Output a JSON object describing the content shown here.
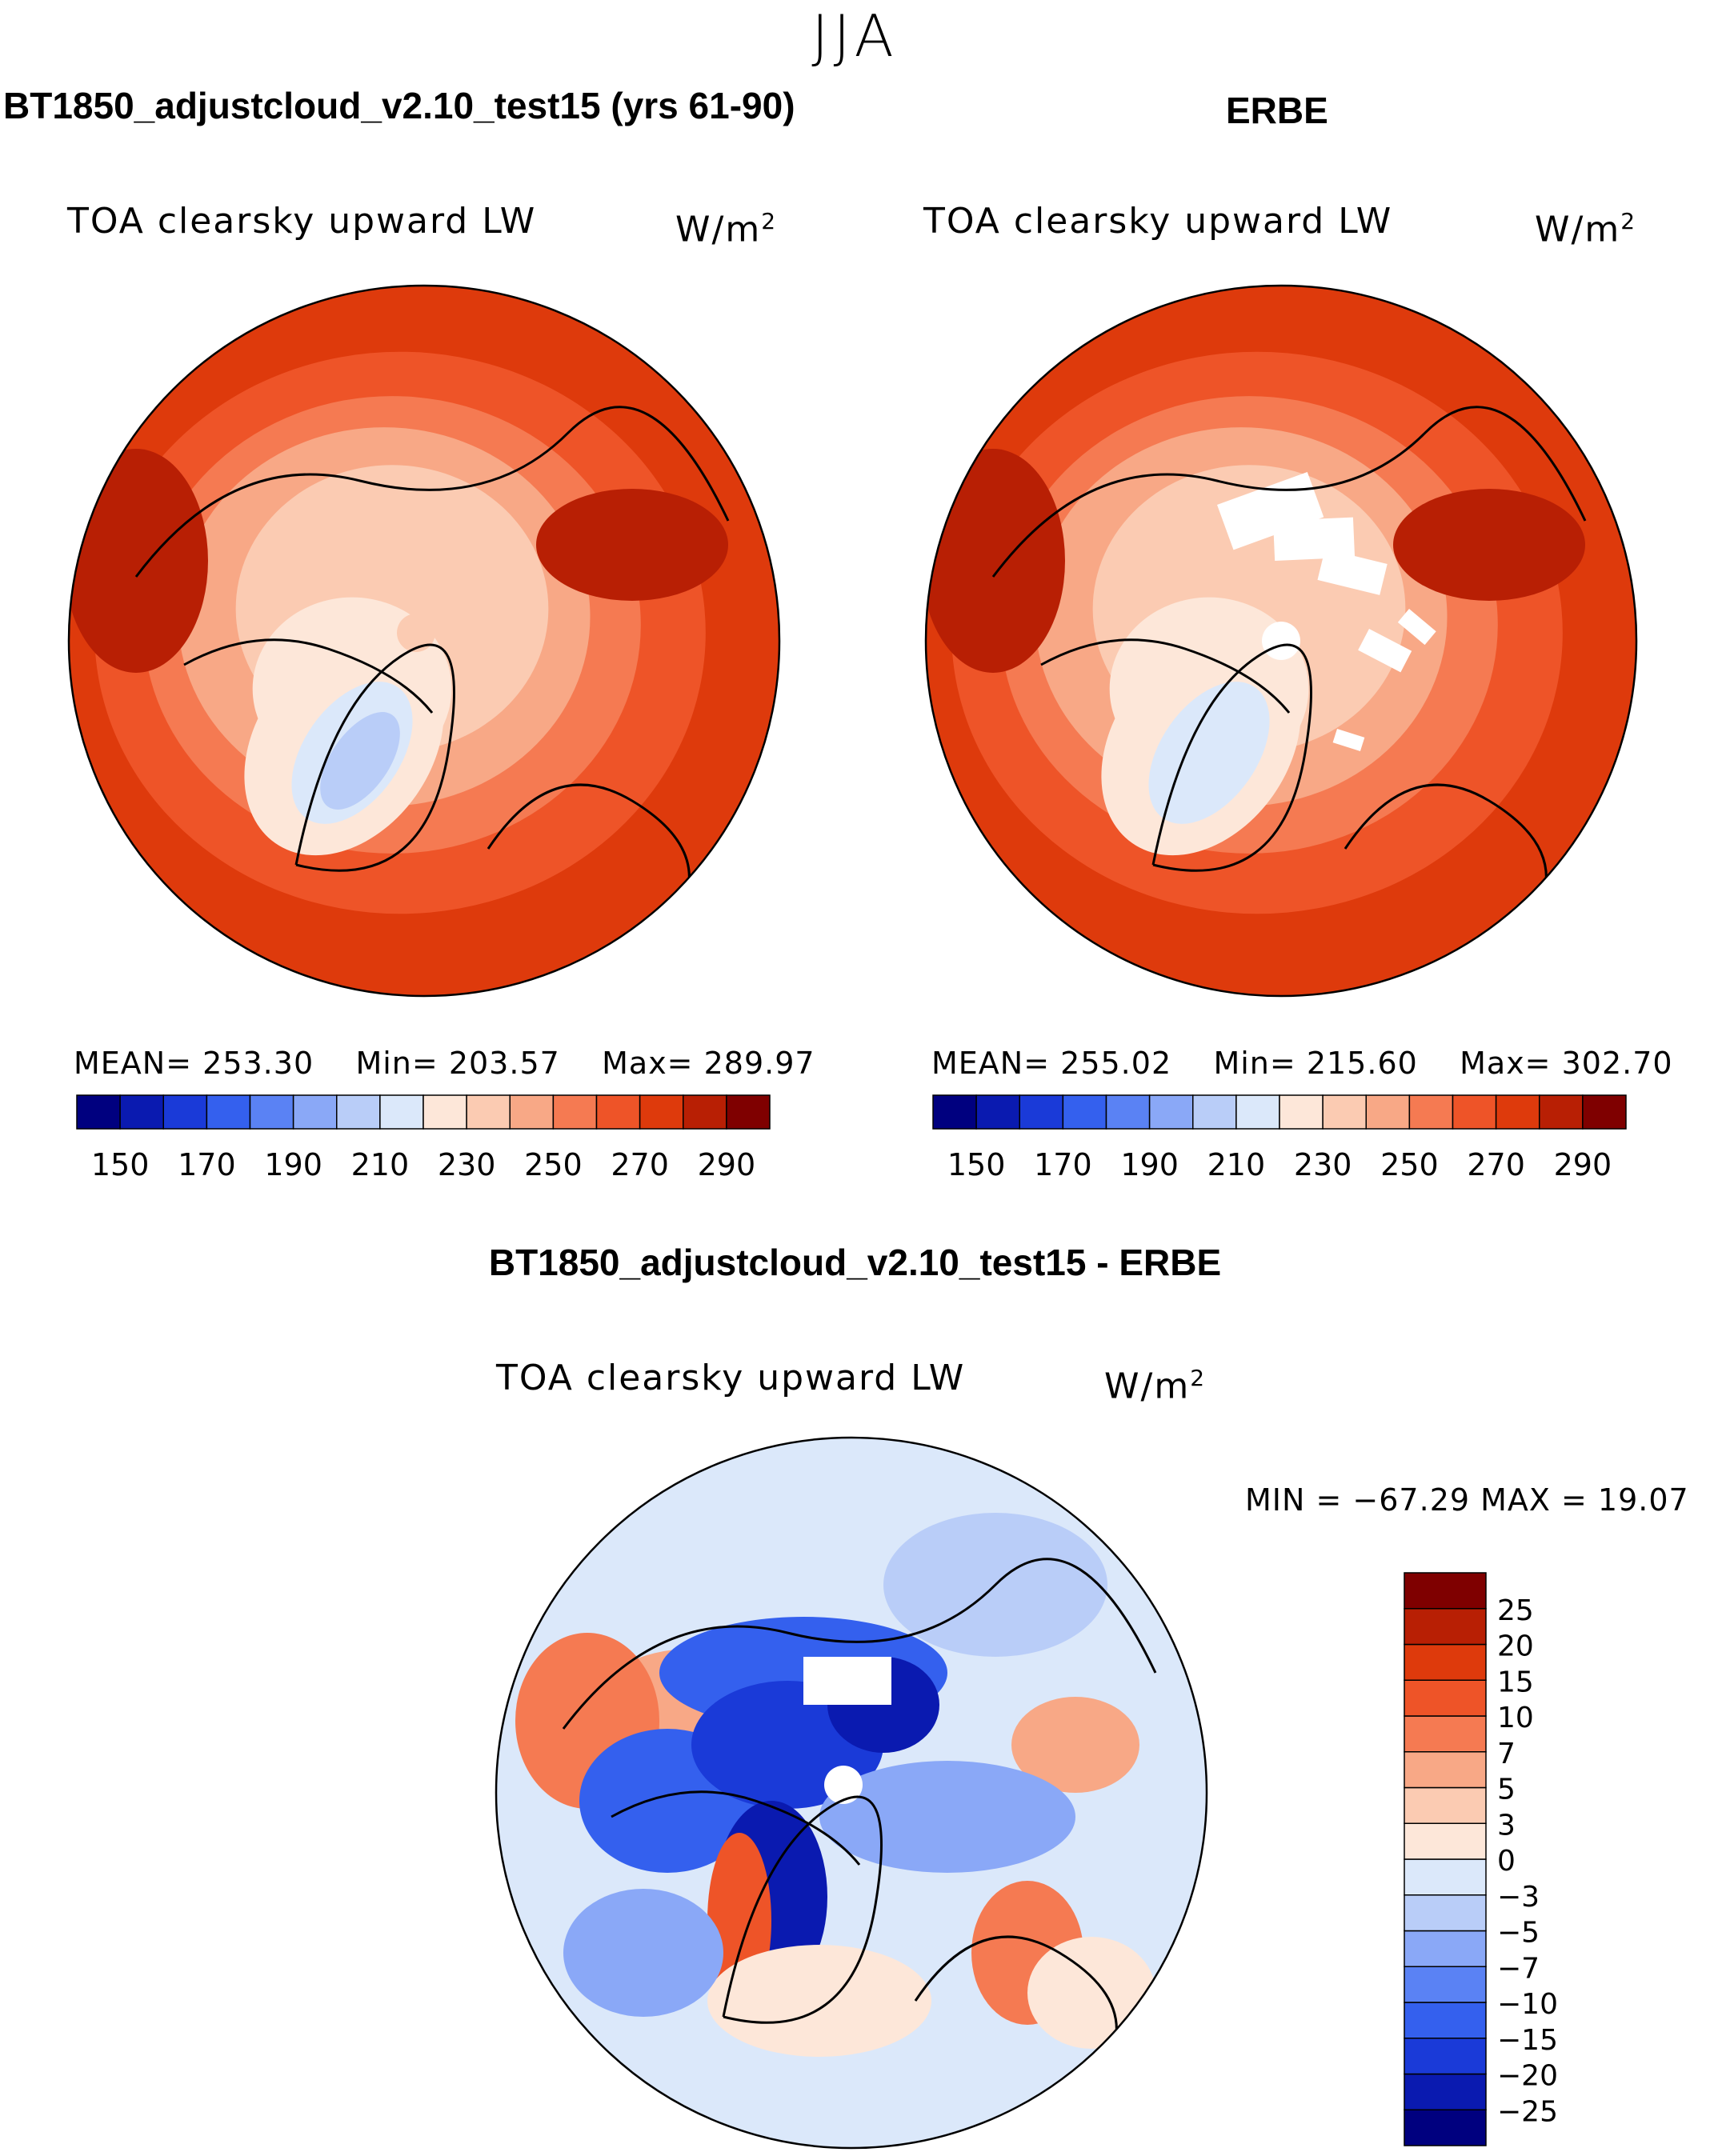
{
  "season": "JJA",
  "panels": [
    {
      "title": "BT1850_adjustcloud_v2.10_test15 (yrs 61-90)",
      "subtitle": "TOA clearsky upward LW",
      "units": "W/m",
      "units_exp": "2",
      "stats": {
        "mean_label": "MEAN=",
        "mean": "253.30",
        "min_label": "Min=",
        "min": "203.57",
        "max_label": "Max=",
        "max": "289.97"
      }
    },
    {
      "title": "ERBE",
      "subtitle": "TOA clearsky upward LW",
      "units": "W/m",
      "units_exp": "2",
      "stats": {
        "mean_label": "MEAN=",
        "mean": "255.02",
        "min_label": "Min=",
        "min": "215.60",
        "max_label": "Max=",
        "max": "302.70"
      }
    },
    {
      "title": "BT1850_adjustcloud_v2.10_test15 - ERBE",
      "subtitle": "TOA clearsky upward LW",
      "units": "W/m",
      "units_exp": "2",
      "stats_text": "MIN = −67.29 MAX =  19.07"
    }
  ],
  "chart_data": [
    {
      "type": "heatmap",
      "projection": "north polar stereographic",
      "title": "BT1850_adjustcloud_v2.10_test15 (yrs 61-90)",
      "field": "TOA clearsky upward LW",
      "colorbar_levels": [
        150,
        160,
        170,
        180,
        190,
        200,
        210,
        220,
        230,
        240,
        250,
        260,
        270,
        280,
        290
      ],
      "colorbar_ticks": [
        "150",
        "170",
        "190",
        "210",
        "230",
        "250",
        "270",
        "290"
      ],
      "colors": [
        "#00007f",
        "#0a1ab0",
        "#1a3ad8",
        "#3460ee",
        "#5a82f4",
        "#8aa8f7",
        "#b9cdf8",
        "#dbe8fa",
        "#fde7d9",
        "#fbcbb2",
        "#f8a886",
        "#f57a52",
        "#ee5428",
        "#de3a0c",
        "#b81f04",
        "#7f0000"
      ],
      "mean": 253.3,
      "min": 203.57,
      "max": 289.97
    },
    {
      "type": "heatmap",
      "projection": "north polar stereographic",
      "title": "ERBE",
      "field": "TOA clearsky upward LW",
      "colorbar_levels": [
        150,
        160,
        170,
        180,
        190,
        200,
        210,
        220,
        230,
        240,
        250,
        260,
        270,
        280,
        290
      ],
      "colorbar_ticks": [
        "150",
        "170",
        "190",
        "210",
        "230",
        "250",
        "270",
        "290"
      ],
      "colors": [
        "#00007f",
        "#0a1ab0",
        "#1a3ad8",
        "#3460ee",
        "#5a82f4",
        "#8aa8f7",
        "#b9cdf8",
        "#dbe8fa",
        "#fde7d9",
        "#fbcbb2",
        "#f8a886",
        "#f57a52",
        "#ee5428",
        "#de3a0c",
        "#b81f04",
        "#7f0000"
      ],
      "mean": 255.02,
      "min": 215.6,
      "max": 302.7
    },
    {
      "type": "heatmap",
      "projection": "north polar stereographic",
      "title": "BT1850_adjustcloud_v2.10_test15 - ERBE",
      "field": "TOA clearsky upward LW",
      "colorbar_levels": [
        -25,
        -20,
        -15,
        -10,
        -7,
        -5,
        -3,
        0,
        3,
        5,
        7,
        10,
        15,
        20,
        25
      ],
      "colorbar_ticks": [
        "25",
        "20",
        "15",
        "10",
        "7",
        "5",
        "3",
        "0",
        "−3",
        "−5",
        "−7",
        "−10",
        "−15",
        "−20",
        "−25"
      ],
      "colors": [
        "#00007f",
        "#0a1ab0",
        "#1a3ad8",
        "#3460ee",
        "#5a82f4",
        "#8aa8f7",
        "#b9cdf8",
        "#dbe8fa",
        "#fde7d9",
        "#fbcbb2",
        "#f8a886",
        "#f57a52",
        "#ee5428",
        "#de3a0c",
        "#b81f04",
        "#7f0000"
      ],
      "min": -67.29,
      "max": 19.07
    }
  ]
}
